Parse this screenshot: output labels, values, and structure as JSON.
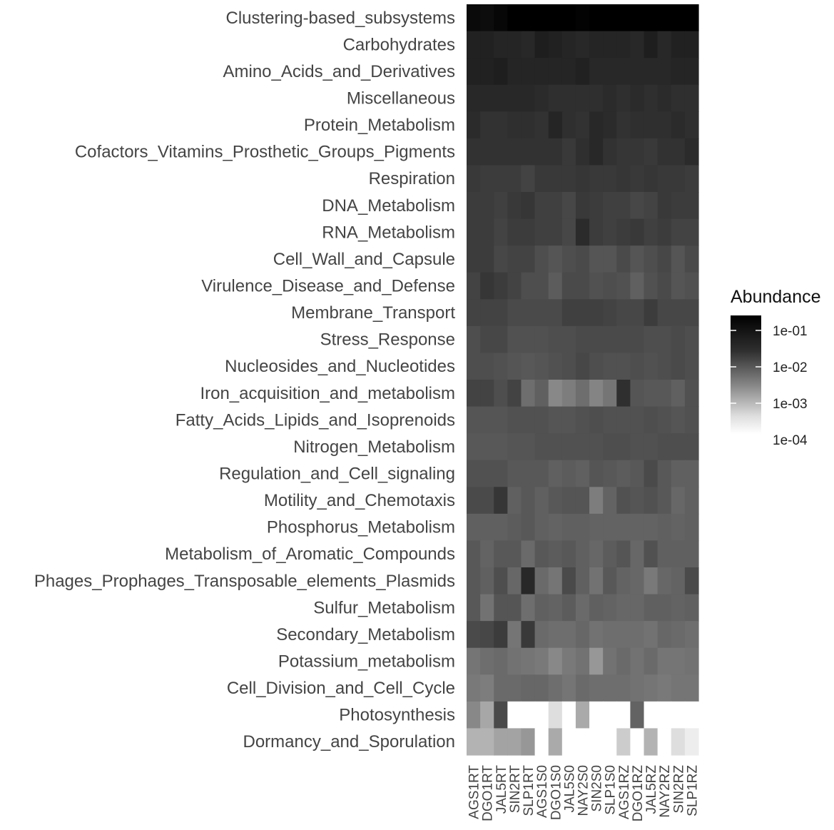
{
  "chart_data": {
    "type": "heatmap",
    "rows": [
      "Clustering-based_subsystems",
      "Carbohydrates",
      "Amino_Acids_and_Derivatives",
      "Miscellaneous",
      "Protein_Metabolism",
      "Cofactors_Vitamins_Prosthetic_Groups_Pigments",
      "Respiration",
      "DNA_Metabolism",
      "RNA_Metabolism",
      "Cell_Wall_and_Capsule",
      "Virulence_Disease_and_Defense",
      "Membrane_Transport",
      "Stress_Response",
      "Nucleosides_and_Nucleotides",
      "Iron_acquisition_and_metabolism",
      "Fatty_Acids_Lipids_and_Isoprenoids",
      "Nitrogen_Metabolism",
      "Regulation_and_Cell_signaling",
      "Motility_and_Chemotaxis",
      "Phosphorus_Metabolism",
      "Metabolism_of_Aromatic_Compounds",
      "Phages_Prophages_Transposable_elements_Plasmids",
      "Sulfur_Metabolism",
      "Secondary_Metabolism",
      "Potassium_metabolism",
      "Cell_Division_and_Cell_Cycle",
      "Photosynthesis",
      "Dormancy_and_Sporulation"
    ],
    "columns": [
      "AGS1RT",
      "DGO1RT",
      "JAL5RT",
      "SIN2RT",
      "SLP1RT",
      "AGS1S0",
      "DGO1S0",
      "JAL5S0",
      "NAY2S0",
      "SIN2S0",
      "SLP1S0",
      "AGS1RZ",
      "DGO1RZ",
      "JAL5RZ",
      "NAY2RZ",
      "SIN2RZ",
      "SLP1RZ"
    ],
    "log10_values": [
      [
        -0.85,
        -0.9,
        -0.8,
        -0.7,
        -0.7,
        -0.7,
        -0.7,
        -0.7,
        -0.75,
        -0.7,
        -0.7,
        -0.7,
        -0.7,
        -0.7,
        -0.7,
        -0.7,
        -0.7
      ],
      [
        -1.2,
        -1.2,
        -1.25,
        -1.25,
        -1.3,
        -1.15,
        -1.2,
        -1.25,
        -1.3,
        -1.25,
        -1.25,
        -1.25,
        -1.3,
        -1.15,
        -1.3,
        -1.2,
        -1.2
      ],
      [
        -1.2,
        -1.2,
        -1.15,
        -1.25,
        -1.25,
        -1.25,
        -1.25,
        -1.25,
        -1.2,
        -1.3,
        -1.3,
        -1.3,
        -1.3,
        -1.3,
        -1.3,
        -1.25,
        -1.25
      ],
      [
        -1.3,
        -1.3,
        -1.3,
        -1.3,
        -1.3,
        -1.35,
        -1.4,
        -1.4,
        -1.4,
        -1.4,
        -1.35,
        -1.4,
        -1.35,
        -1.4,
        -1.35,
        -1.4,
        -1.4
      ],
      [
        -1.35,
        -1.45,
        -1.45,
        -1.4,
        -1.4,
        -1.45,
        -1.25,
        -1.4,
        -1.45,
        -1.3,
        -1.35,
        -1.45,
        -1.4,
        -1.4,
        -1.4,
        -1.35,
        -1.4
      ],
      [
        -1.45,
        -1.45,
        -1.45,
        -1.45,
        -1.45,
        -1.45,
        -1.45,
        -1.55,
        -1.4,
        -1.3,
        -1.45,
        -1.5,
        -1.5,
        -1.55,
        -1.45,
        -1.45,
        -1.35
      ],
      [
        -1.55,
        -1.6,
        -1.6,
        -1.6,
        -1.7,
        -1.55,
        -1.55,
        -1.55,
        -1.5,
        -1.55,
        -1.55,
        -1.5,
        -1.55,
        -1.5,
        -1.55,
        -1.55,
        -1.6
      ],
      [
        -1.6,
        -1.6,
        -1.65,
        -1.55,
        -1.5,
        -1.65,
        -1.65,
        -1.75,
        -1.55,
        -1.6,
        -1.65,
        -1.65,
        -1.75,
        -1.7,
        -1.55,
        -1.6,
        -1.6
      ],
      [
        -1.6,
        -1.6,
        -1.7,
        -1.6,
        -1.6,
        -1.65,
        -1.65,
        -1.75,
        -1.35,
        -1.6,
        -1.65,
        -1.6,
        -1.55,
        -1.65,
        -1.6,
        -1.7,
        -1.7
      ],
      [
        -1.6,
        -1.6,
        -1.75,
        -1.7,
        -1.7,
        -1.85,
        -1.95,
        -1.85,
        -1.8,
        -1.95,
        -1.95,
        -1.8,
        -1.95,
        -1.85,
        -1.75,
        -1.95,
        -1.8
      ],
      [
        -1.7,
        -1.5,
        -1.6,
        -1.7,
        -1.85,
        -1.85,
        -2.05,
        -1.8,
        -1.8,
        -1.9,
        -1.85,
        -1.9,
        -2.1,
        -1.9,
        -1.8,
        -1.95,
        -1.9
      ],
      [
        -1.7,
        -1.7,
        -1.7,
        -1.8,
        -1.8,
        -1.8,
        -1.8,
        -1.65,
        -1.65,
        -1.65,
        -1.7,
        -1.75,
        -1.75,
        -1.6,
        -1.75,
        -1.75,
        -1.75
      ],
      [
        -1.85,
        -1.75,
        -1.75,
        -1.9,
        -1.9,
        -1.9,
        -1.85,
        -1.85,
        -1.8,
        -1.8,
        -1.8,
        -1.8,
        -1.8,
        -1.85,
        -1.85,
        -1.8,
        -1.85
      ],
      [
        -1.85,
        -1.85,
        -1.9,
        -1.95,
        -2.0,
        -1.95,
        -1.9,
        -1.85,
        -1.75,
        -1.85,
        -1.9,
        -1.9,
        -1.85,
        -1.9,
        -1.85,
        -1.8,
        -1.85
      ],
      [
        -1.7,
        -1.7,
        -1.85,
        -1.7,
        -2.3,
        -2.1,
        -2.65,
        -2.5,
        -2.3,
        -2.6,
        -2.4,
        -1.4,
        -1.95,
        -2.0,
        -2.0,
        -2.1,
        -1.9
      ],
      [
        -1.95,
        -1.95,
        -1.95,
        -1.9,
        -1.9,
        -1.9,
        -1.95,
        -1.95,
        -1.9,
        -1.85,
        -1.9,
        -1.9,
        -1.9,
        -1.85,
        -1.9,
        -1.95,
        -1.9
      ],
      [
        -2.0,
        -2.0,
        -2.0,
        -1.95,
        -1.95,
        -1.9,
        -1.9,
        -1.9,
        -1.9,
        -1.9,
        -1.85,
        -1.85,
        -1.9,
        -1.9,
        -1.85,
        -1.85,
        -1.85
      ],
      [
        -1.9,
        -1.9,
        -1.9,
        -2.0,
        -2.0,
        -2.0,
        -2.1,
        -2.05,
        -2.1,
        -1.95,
        -2.0,
        -2.05,
        -2.0,
        -1.8,
        -2.0,
        -2.1,
        -2.1
      ],
      [
        -1.8,
        -1.8,
        -1.5,
        -2.1,
        -2.0,
        -2.1,
        -2.0,
        -1.95,
        -1.95,
        -2.5,
        -2.15,
        -1.9,
        -1.95,
        -1.9,
        -2.0,
        -2.2,
        -2.1
      ],
      [
        -2.1,
        -2.1,
        -2.1,
        -2.05,
        -2.0,
        -2.1,
        -2.15,
        -2.1,
        -2.1,
        -2.15,
        -2.15,
        -2.15,
        -2.15,
        -2.15,
        -2.1,
        -2.15,
        -2.1
      ],
      [
        -2.0,
        -2.15,
        -2.0,
        -2.0,
        -2.25,
        -2.0,
        -2.05,
        -2.0,
        -2.1,
        -2.2,
        -2.05,
        -1.95,
        -2.2,
        -1.9,
        -2.1,
        -2.1,
        -2.1
      ],
      [
        -2.0,
        -2.1,
        -1.85,
        -2.2,
        -1.3,
        -2.25,
        -2.4,
        -1.8,
        -2.1,
        -2.35,
        -2.0,
        -2.15,
        -2.2,
        -2.45,
        -2.2,
        -2.15,
        -1.8
      ],
      [
        -2.0,
        -2.35,
        -1.95,
        -1.95,
        -2.3,
        -2.1,
        -2.15,
        -2.05,
        -2.25,
        -2.1,
        -2.15,
        -2.2,
        -2.2,
        -2.1,
        -2.1,
        -2.15,
        -2.1
      ],
      [
        -1.8,
        -1.75,
        -1.6,
        -2.4,
        -1.55,
        -2.25,
        -2.3,
        -2.3,
        -2.2,
        -2.35,
        -2.3,
        -2.3,
        -2.3,
        -2.35,
        -2.2,
        -2.25,
        -2.3
      ],
      [
        -2.4,
        -2.3,
        -2.25,
        -2.35,
        -2.4,
        -2.45,
        -2.65,
        -2.45,
        -2.35,
        -2.85,
        -2.35,
        -2.25,
        -2.35,
        -2.25,
        -2.4,
        -2.4,
        -2.35
      ],
      [
        -2.45,
        -2.5,
        -2.25,
        -2.25,
        -2.2,
        -2.2,
        -2.3,
        -2.4,
        -2.25,
        -2.3,
        -2.3,
        -2.3,
        -2.35,
        -2.4,
        -2.45,
        -2.4,
        -2.4
      ],
      [
        -2.65,
        -3.05,
        -1.8,
        -4.0,
        -4.0,
        -4.0,
        -3.7,
        -4.0,
        -3.1,
        -4.0,
        -4.0,
        -4.0,
        -2.15,
        -4.0,
        -4.0,
        -4.0,
        -4.0
      ],
      [
        -3.2,
        -3.2,
        -3.0,
        -3.0,
        -2.85,
        -4.0,
        -3.1,
        -4.0,
        -4.0,
        -4.0,
        -4.0,
        -3.5,
        -4.0,
        -3.2,
        -4.0,
        -3.7,
        -3.85
      ]
    ],
    "legend": {
      "title": "Abundance",
      "ticks": [
        "1e-01",
        "1e-02",
        "1e-03",
        "1e-04"
      ],
      "scale": "log10",
      "range": [
        "1e-04",
        "2e-01"
      ],
      "color_low": "#ffffff",
      "color_high": "#000000",
      "placement": "right"
    }
  }
}
